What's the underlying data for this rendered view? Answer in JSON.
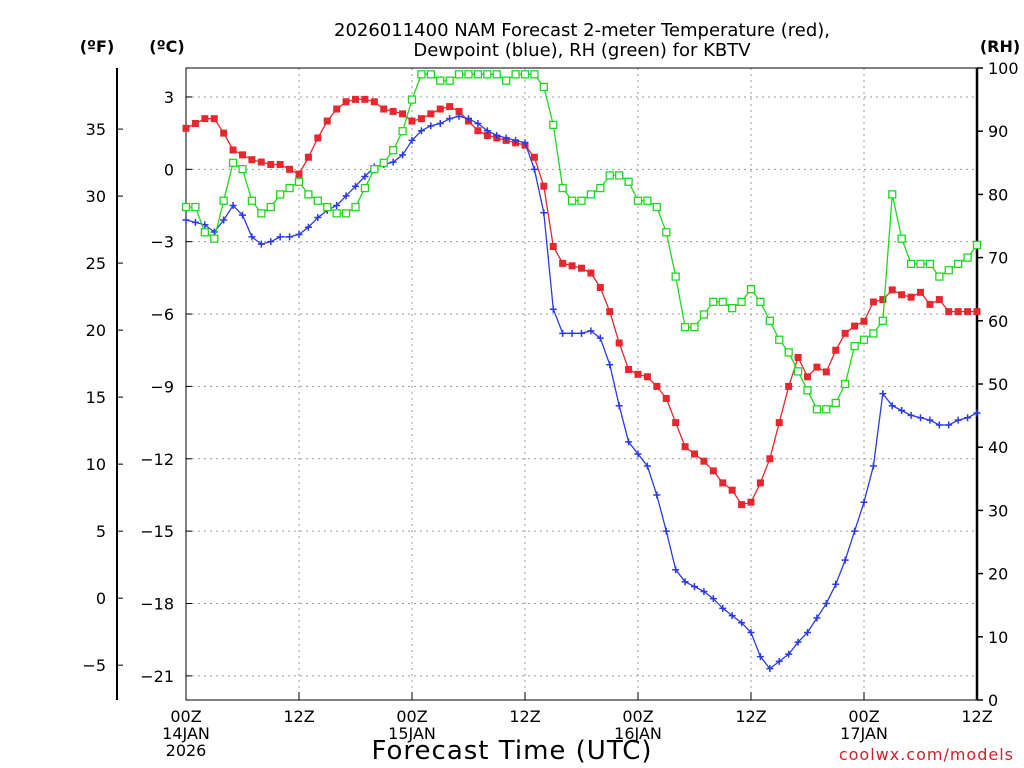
{
  "chart_data": {
    "type": "line",
    "title_lines": [
      "2026011400 NAM Forecast 2-meter Temperature (red),",
      "Dewpoint (blue), RH (green) for KBTV"
    ],
    "xlabel": "Forecast Time (UTC)",
    "credit": "coolwx.com/models",
    "unit_labels": {
      "fahrenheit": "(ºF)",
      "celsius": "(ºC)",
      "rh": "(RH)"
    },
    "x_range_hours": [
      0,
      84
    ],
    "celsius_range": [
      -22,
      4.2
    ],
    "rh_range": [
      0,
      100
    ],
    "x_ticks": [
      {
        "hour": 0,
        "lines": [
          "00Z",
          "14JAN",
          "2026"
        ]
      },
      {
        "hour": 12,
        "lines": [
          "12Z"
        ]
      },
      {
        "hour": 24,
        "lines": [
          "00Z",
          "15JAN"
        ]
      },
      {
        "hour": 36,
        "lines": [
          "12Z"
        ]
      },
      {
        "hour": 48,
        "lines": [
          "00Z",
          "16JAN"
        ]
      },
      {
        "hour": 60,
        "lines": [
          "12Z"
        ]
      },
      {
        "hour": 72,
        "lines": [
          "00Z",
          "17JAN"
        ]
      },
      {
        "hour": 84,
        "lines": [
          "12Z"
        ]
      }
    ],
    "celsius_ticks": [
      {
        "value": 3,
        "label": "3"
      },
      {
        "value": 0,
        "label": "0"
      },
      {
        "value": -3,
        "label": "−3"
      },
      {
        "value": -6,
        "label": "−6"
      },
      {
        "value": -9,
        "label": "−9"
      },
      {
        "value": -12,
        "label": "−12"
      },
      {
        "value": -15,
        "label": "−15"
      },
      {
        "value": -18,
        "label": "−18"
      },
      {
        "value": -21,
        "label": "−21"
      }
    ],
    "fahrenheit_ticks": [
      {
        "value": 35,
        "label": "35"
      },
      {
        "value": 30,
        "label": "30"
      },
      {
        "value": 25,
        "label": "25"
      },
      {
        "value": 20,
        "label": "20"
      },
      {
        "value": 15,
        "label": "15"
      },
      {
        "value": 10,
        "label": "10"
      },
      {
        "value": 5,
        "label": "5"
      },
      {
        "value": 0,
        "label": "0"
      },
      {
        "value": -5,
        "label": "−5"
      }
    ],
    "rh_ticks": [
      0,
      10,
      20,
      30,
      40,
      50,
      60,
      70,
      80,
      90,
      100
    ],
    "series": [
      {
        "name": "Temperature",
        "unit": "C",
        "color": "#e8262d",
        "marker": "filled-square",
        "hours": [
          0,
          1,
          2,
          3,
          4,
          5,
          6,
          7,
          8,
          9,
          10,
          11,
          12,
          13,
          14,
          15,
          16,
          17,
          18,
          19,
          20,
          21,
          22,
          23,
          24,
          25,
          26,
          27,
          28,
          29,
          30,
          31,
          32,
          33,
          34,
          35,
          36,
          37,
          38,
          39,
          40,
          41,
          42,
          43,
          44,
          45,
          46,
          47,
          48,
          49,
          50,
          51,
          52,
          53,
          54,
          55,
          56,
          57,
          58,
          59,
          60,
          61,
          62,
          63,
          64,
          65,
          66,
          67,
          68,
          69,
          70,
          71,
          72,
          73,
          74,
          75,
          76,
          77,
          78,
          79,
          80,
          81,
          82,
          83,
          84
        ],
        "values": [
          1.7,
          1.9,
          2.1,
          2.1,
          1.5,
          0.8,
          0.6,
          0.4,
          0.3,
          0.2,
          0.2,
          0.0,
          -0.2,
          0.5,
          1.3,
          2.0,
          2.5,
          2.8,
          2.9,
          2.9,
          2.8,
          2.5,
          2.4,
          2.3,
          2.0,
          2.1,
          2.3,
          2.5,
          2.6,
          2.4,
          2.0,
          1.6,
          1.4,
          1.3,
          1.2,
          1.1,
          1.0,
          0.5,
          -0.7,
          -3.2,
          -3.9,
          -4.0,
          -4.1,
          -4.3,
          -4.9,
          -5.9,
          -7.2,
          -8.3,
          -8.5,
          -8.6,
          -9.0,
          -9.5,
          -10.5,
          -11.5,
          -11.8,
          -12.1,
          -12.5,
          -13.0,
          -13.3,
          -13.9,
          -13.8,
          -13.0,
          -12.0,
          -10.5,
          -9.0,
          -7.8,
          -8.6,
          -8.2,
          -8.4,
          -7.5,
          -6.8,
          -6.5,
          -6.3,
          -5.5,
          -5.4,
          -5.0,
          -5.2,
          -5.3,
          -5.1,
          -5.6,
          -5.4,
          -5.9,
          -5.9,
          -5.9,
          -5.9
        ]
      },
      {
        "name": "Dewpoint",
        "unit": "C",
        "color": "#2b3ae8",
        "marker": "plus",
        "hours": [
          0,
          1,
          2,
          3,
          4,
          5,
          6,
          7,
          8,
          9,
          10,
          11,
          12,
          13,
          14,
          15,
          16,
          17,
          18,
          19,
          20,
          21,
          22,
          23,
          24,
          25,
          26,
          27,
          28,
          29,
          30,
          31,
          32,
          33,
          34,
          35,
          36,
          37,
          38,
          39,
          40,
          41,
          42,
          43,
          44,
          45,
          46,
          47,
          48,
          49,
          50,
          51,
          52,
          53,
          54,
          55,
          56,
          57,
          58,
          59,
          60,
          61,
          62,
          63,
          64,
          65,
          66,
          67,
          68,
          69,
          70,
          71,
          72,
          73,
          74,
          75,
          76,
          77,
          78,
          79,
          80,
          81,
          82,
          83,
          84
        ],
        "values": [
          -2.1,
          -2.2,
          -2.3,
          -2.6,
          -2.1,
          -1.5,
          -1.9,
          -2.8,
          -3.1,
          -3.0,
          -2.8,
          -2.8,
          -2.7,
          -2.4,
          -2.0,
          -1.7,
          -1.5,
          -1.1,
          -0.7,
          -0.3,
          0.1,
          0.2,
          0.3,
          0.6,
          1.2,
          1.6,
          1.8,
          1.9,
          2.1,
          2.2,
          2.1,
          1.9,
          1.6,
          1.4,
          1.3,
          1.2,
          1.1,
          0.0,
          -1.8,
          -5.8,
          -6.8,
          -6.8,
          -6.8,
          -6.7,
          -7.0,
          -8.1,
          -9.8,
          -11.3,
          -11.8,
          -12.3,
          -13.5,
          -15.0,
          -16.6,
          -17.1,
          -17.3,
          -17.5,
          -17.8,
          -18.2,
          -18.5,
          -18.8,
          -19.2,
          -20.2,
          -20.7,
          -20.4,
          -20.1,
          -19.6,
          -19.2,
          -18.6,
          -18.0,
          -17.2,
          -16.2,
          -15.0,
          -13.8,
          -12.3,
          -9.3,
          -9.8,
          -10.0,
          -10.2,
          -10.3,
          -10.4,
          -10.6,
          -10.6,
          -10.4,
          -10.3,
          -10.1
        ]
      },
      {
        "name": "RH",
        "unit": "%",
        "color": "#1ed81e",
        "marker": "open-square",
        "hours": [
          0,
          1,
          2,
          3,
          4,
          5,
          6,
          7,
          8,
          9,
          10,
          11,
          12,
          13,
          14,
          15,
          16,
          17,
          18,
          19,
          20,
          21,
          22,
          23,
          24,
          25,
          26,
          27,
          28,
          29,
          30,
          31,
          32,
          33,
          34,
          35,
          36,
          37,
          38,
          39,
          40,
          41,
          42,
          43,
          44,
          45,
          46,
          47,
          48,
          49,
          50,
          51,
          52,
          53,
          54,
          55,
          56,
          57,
          58,
          59,
          60,
          61,
          62,
          63,
          64,
          65,
          66,
          67,
          68,
          69,
          70,
          71,
          72,
          73,
          74,
          75,
          76,
          77,
          78,
          79,
          80,
          81,
          82,
          83,
          84
        ],
        "values": [
          78,
          78,
          74,
          73,
          79,
          85,
          84,
          79,
          77,
          78,
          80,
          81,
          82,
          80,
          79,
          78,
          77,
          77,
          78,
          81,
          84,
          85,
          87,
          90,
          95,
          99,
          99,
          98,
          98,
          99,
          99,
          99,
          99,
          99,
          98,
          99,
          99,
          99,
          97,
          91,
          81,
          79,
          79,
          80,
          81,
          83,
          83,
          82,
          79,
          79,
          78,
          74,
          67,
          59,
          59,
          61,
          63,
          63,
          62,
          63,
          65,
          63,
          60,
          57,
          55,
          52,
          49,
          46,
          46,
          47,
          50,
          56,
          57,
          58,
          60,
          80,
          73,
          69,
          69,
          69,
          67,
          68,
          69,
          70,
          72
        ]
      }
    ]
  }
}
